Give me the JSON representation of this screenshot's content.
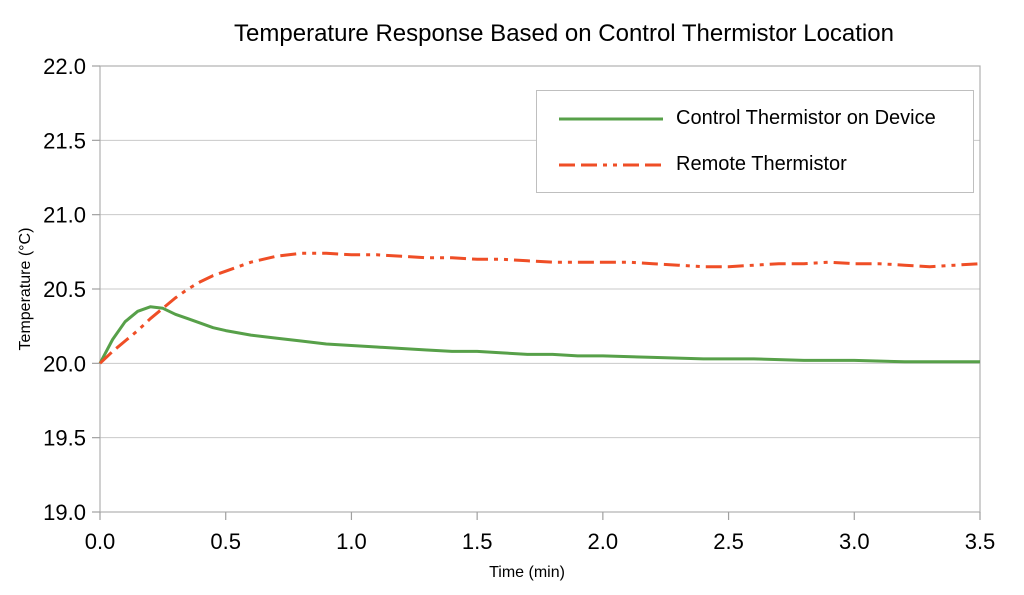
{
  "chart_data": {
    "type": "line",
    "title": "Temperature Response Based on Control Thermistor Location",
    "xlabel": "Time (min)",
    "ylabel": "Temperature (°C)",
    "xlim": [
      0.0,
      3.5
    ],
    "ylim": [
      19.0,
      22.0
    ],
    "xticks": {
      "values": [
        0.0,
        0.5,
        1.0,
        1.5,
        2.0,
        2.5,
        3.0,
        3.5
      ],
      "labels": [
        "0.0",
        "0.5",
        "1.0",
        "1.5",
        "2.0",
        "2.5",
        "3.0",
        "3.5"
      ]
    },
    "yticks": {
      "values": [
        19.0,
        19.5,
        20.0,
        20.5,
        21.0,
        21.5,
        22.0
      ],
      "labels": [
        "19.0",
        "19.5",
        "20.0",
        "20.5",
        "21.0",
        "21.5",
        "22.0"
      ]
    },
    "grid": "horizontal-only",
    "legend": {
      "position": "top-right-inside",
      "border": true
    },
    "colors": {
      "background": "#ffffff",
      "text": "#000000",
      "gridline": "#c9c9c9",
      "axis": "#b0b0b0",
      "tick": "#a0a0a0",
      "legend_border": "#bfbfbf"
    },
    "series": [
      {
        "name": "Control Thermistor on Device",
        "color": "#57a049",
        "line_style": "solid",
        "points": [
          [
            0.0,
            20.0
          ],
          [
            0.05,
            20.16
          ],
          [
            0.1,
            20.28
          ],
          [
            0.15,
            20.35
          ],
          [
            0.2,
            20.38
          ],
          [
            0.25,
            20.37
          ],
          [
            0.3,
            20.33
          ],
          [
            0.35,
            20.3
          ],
          [
            0.4,
            20.27
          ],
          [
            0.45,
            20.24
          ],
          [
            0.5,
            20.22
          ],
          [
            0.6,
            20.19
          ],
          [
            0.7,
            20.17
          ],
          [
            0.8,
            20.15
          ],
          [
            0.9,
            20.13
          ],
          [
            1.0,
            20.12
          ],
          [
            1.1,
            20.11
          ],
          [
            1.2,
            20.1
          ],
          [
            1.3,
            20.09
          ],
          [
            1.4,
            20.08
          ],
          [
            1.5,
            20.08
          ],
          [
            1.6,
            20.07
          ],
          [
            1.7,
            20.06
          ],
          [
            1.8,
            20.06
          ],
          [
            1.9,
            20.05
          ],
          [
            2.0,
            20.05
          ],
          [
            2.2,
            20.04
          ],
          [
            2.4,
            20.03
          ],
          [
            2.6,
            20.03
          ],
          [
            2.8,
            20.02
          ],
          [
            3.0,
            20.02
          ],
          [
            3.2,
            20.01
          ],
          [
            3.4,
            20.01
          ],
          [
            3.5,
            20.01
          ]
        ]
      },
      {
        "name": "Remote Thermistor",
        "color": "#ef4e26",
        "line_style": "dash-dash-dot-dot",
        "points": [
          [
            0.0,
            20.0
          ],
          [
            0.05,
            20.08
          ],
          [
            0.1,
            20.15
          ],
          [
            0.15,
            20.22
          ],
          [
            0.2,
            20.3
          ],
          [
            0.25,
            20.37
          ],
          [
            0.3,
            20.44
          ],
          [
            0.35,
            20.5
          ],
          [
            0.4,
            20.55
          ],
          [
            0.45,
            20.59
          ],
          [
            0.5,
            20.62
          ],
          [
            0.6,
            20.68
          ],
          [
            0.7,
            20.72
          ],
          [
            0.8,
            20.74
          ],
          [
            0.9,
            20.74
          ],
          [
            1.0,
            20.73
          ],
          [
            1.1,
            20.73
          ],
          [
            1.2,
            20.72
          ],
          [
            1.3,
            20.71
          ],
          [
            1.4,
            20.71
          ],
          [
            1.5,
            20.7
          ],
          [
            1.6,
            20.7
          ],
          [
            1.7,
            20.69
          ],
          [
            1.8,
            20.68
          ],
          [
            1.9,
            20.68
          ],
          [
            2.0,
            20.68
          ],
          [
            2.1,
            20.68
          ],
          [
            2.2,
            20.67
          ],
          [
            2.3,
            20.66
          ],
          [
            2.4,
            20.65
          ],
          [
            2.5,
            20.65
          ],
          [
            2.6,
            20.66
          ],
          [
            2.7,
            20.67
          ],
          [
            2.8,
            20.67
          ],
          [
            2.9,
            20.68
          ],
          [
            3.0,
            20.67
          ],
          [
            3.1,
            20.67
          ],
          [
            3.2,
            20.66
          ],
          [
            3.3,
            20.65
          ],
          [
            3.4,
            20.66
          ],
          [
            3.5,
            20.67
          ]
        ]
      }
    ]
  }
}
